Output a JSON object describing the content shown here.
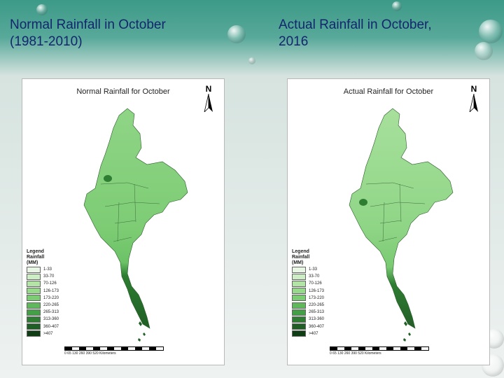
{
  "slide": {
    "left_title_line1": "Normal Rainfall in October",
    "left_title_line2": "(1981-2010)",
    "right_title_line1": "Actual Rainfall in October,",
    "right_title_line2": "2016"
  },
  "maps": [
    {
      "title": "Normal Rainfall for October",
      "legend_title": "Legend",
      "legend_subtitle": "Rainfall",
      "legend_unit": "(MM)",
      "classes": [
        "1-33",
        "33-70",
        "70-126",
        "126-173",
        "173-220",
        "220-265",
        "265-313",
        "313-360",
        "360-407",
        ">407"
      ],
      "scale_labels": "0 65 130 260 390 520 Kilometers"
    },
    {
      "title": "Actual Rainfall for October",
      "legend_title": "Legend",
      "legend_subtitle": "Rainfall",
      "legend_unit": "(MM)",
      "classes": [
        "1-33",
        "33-70",
        "70-126",
        "126-173",
        "173-220",
        "220-265",
        "265-313",
        "313-360",
        "360-407",
        ">407"
      ],
      "scale_labels": "0 65 130 260 390 520 Kilometers"
    }
  ],
  "north_label": "N",
  "legend_colors": [
    "#e8f6e4",
    "#cdeec4",
    "#b2e4a6",
    "#96d98a",
    "#7bcc72",
    "#5fb85a",
    "#43a047",
    "#2e7d32",
    "#1f5f25",
    "#0f3d14"
  ],
  "icons": [
    "north-arrow-icon"
  ]
}
